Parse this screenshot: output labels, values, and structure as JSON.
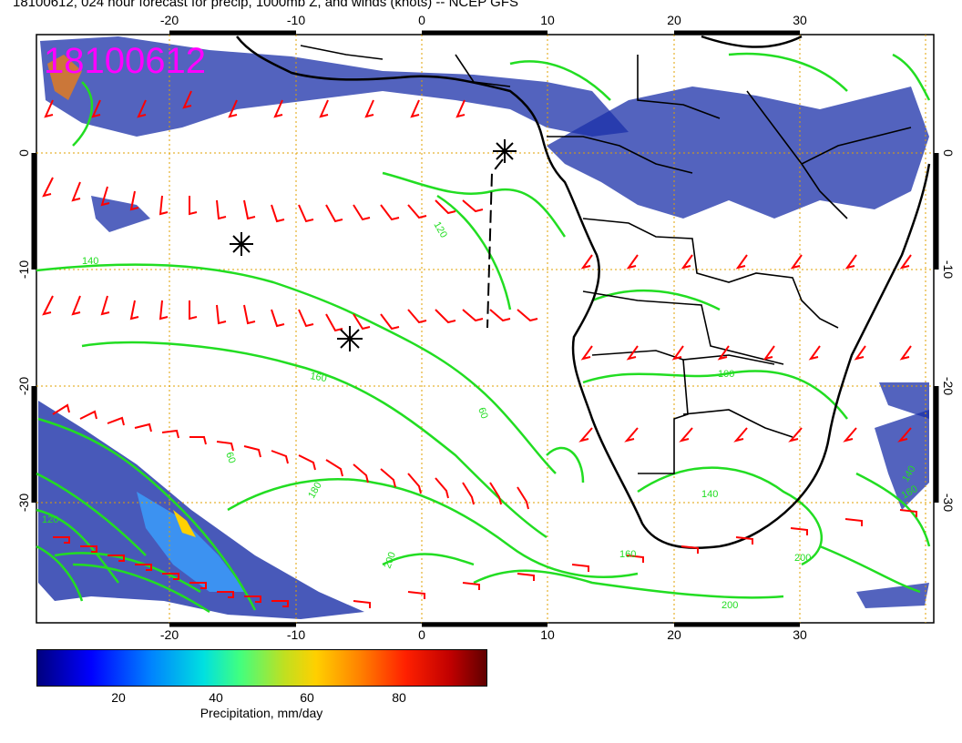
{
  "title": "18100612, 024 hour forecast for precip, 1000mb Z, and winds (knots) -- NCEP GFS",
  "stamp": "18100612",
  "map": {
    "lon_range": [
      -30,
      40
    ],
    "lat_range": [
      -40,
      10
    ],
    "lon_ticks": [
      "-20",
      "-10",
      "0",
      "10",
      "20",
      "30"
    ],
    "lat_ticks": [
      "0",
      "-10",
      "-20",
      "-30"
    ],
    "gridlines": "dotted-orange",
    "contour_color": "#22dd22",
    "barb_color": "#ff0000",
    "precip_color": "#1a2fa8",
    "contour_labels": [
      "140",
      "120",
      "160",
      "180",
      "200",
      "200",
      "200",
      "140",
      "160",
      "100",
      "140",
      "120",
      "60",
      "60",
      "160"
    ],
    "markers": [
      "tropical-storm-symbol",
      "tropical-storm-symbol",
      "tropical-storm-symbol"
    ]
  },
  "colorbar": {
    "ticks": [
      "20",
      "40",
      "60",
      "80"
    ],
    "title": "Precipitation, mm/day"
  }
}
